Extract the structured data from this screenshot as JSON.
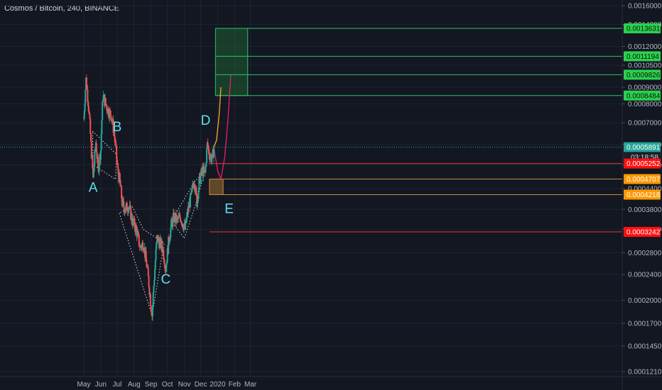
{
  "symbol_title": "Cosmos / Bitcoin, 240, BINANCE",
  "colors": {
    "background": "#131722",
    "grid": "#1f2330",
    "candle_up": "#26a69a",
    "candle_down": "#ef5350",
    "target_box": "#1e5e33",
    "target_line": "#2fc06a",
    "target_badge": "#2ad14e",
    "stop_line": "#e53935",
    "stop_badge": "#ff1010",
    "entry_badge": "#ff9800",
    "entry_box": "#7a5a2a",
    "current_badge": "#26a69a",
    "wave_label": "#5fe0e8",
    "projection_up": "#ffa726",
    "projection_down": "#e91e63"
  },
  "chart_data": {
    "type": "candlestick",
    "title": "Cosmos / Bitcoin, 240, BINANCE",
    "x_ticks": [
      "May",
      "Jun",
      "Jul",
      "Aug",
      "Sep",
      "Oct",
      "Nov",
      "Dec",
      "2020",
      "Feb",
      "Mar"
    ],
    "y_scale": "log",
    "y_ticks": [
      "0.0016000",
      "0.0014000",
      "0.0012000",
      "0.0010500",
      "0.0009000",
      "0.0008000",
      "0.0007000",
      "0.0006000",
      "0.0005200",
      "0.0004400",
      "0.0003800",
      "0.0003300",
      "0.0002800",
      "0.0002400",
      "0.0002000",
      "0.0001700",
      "0.0001450",
      "0.0001210"
    ],
    "ylim": [
      0.000121,
      0.0016
    ],
    "price_path": [
      {
        "t": "2019-05-01",
        "price": 0.00072
      },
      {
        "t": "2019-05-05",
        "price": 0.00095
      },
      {
        "t": "2019-05-10",
        "price": 0.00078
      },
      {
        "t": "2019-05-14",
        "price": 0.0006
      },
      {
        "t": "2019-05-18",
        "price": 0.00047
      },
      {
        "t": "2019-05-23",
        "price": 0.00061
      },
      {
        "t": "2019-05-27",
        "price": 0.0005
      },
      {
        "t": "2019-06-01",
        "price": 0.00058
      },
      {
        "t": "2019-06-05",
        "price": 0.00085
      },
      {
        "t": "2019-06-10",
        "price": 0.0008
      },
      {
        "t": "2019-06-15",
        "price": 0.00076
      },
      {
        "t": "2019-06-20",
        "price": 0.00074
      },
      {
        "t": "2019-06-25",
        "price": 0.00066
      },
      {
        "t": "2019-06-28",
        "price": 0.00059
      },
      {
        "t": "2019-07-02",
        "price": 0.0005
      },
      {
        "t": "2019-07-06",
        "price": 0.00046
      },
      {
        "t": "2019-07-10",
        "price": 0.0004
      },
      {
        "t": "2019-07-15",
        "price": 0.00038
      },
      {
        "t": "2019-07-22",
        "price": 0.00039
      },
      {
        "t": "2019-07-29",
        "price": 0.00035
      },
      {
        "t": "2019-08-05",
        "price": 0.00033
      },
      {
        "t": "2019-08-12",
        "price": 0.00029
      },
      {
        "t": "2019-08-18",
        "price": 0.0003
      },
      {
        "t": "2019-08-25",
        "price": 0.00025
      },
      {
        "t": "2019-08-31",
        "price": 0.0002
      },
      {
        "t": "2019-09-03",
        "price": 0.00018
      },
      {
        "t": "2019-09-08",
        "price": 0.00025
      },
      {
        "t": "2019-09-12",
        "price": 0.00031
      },
      {
        "t": "2019-09-17",
        "price": 0.0003
      },
      {
        "t": "2019-09-22",
        "price": 0.00029
      },
      {
        "t": "2019-09-28",
        "price": 0.00025
      },
      {
        "t": "2019-10-03",
        "price": 0.0003
      },
      {
        "t": "2019-10-08",
        "price": 0.00034
      },
      {
        "t": "2019-10-13",
        "price": 0.00036
      },
      {
        "t": "2019-10-18",
        "price": 0.00035
      },
      {
        "t": "2019-10-25",
        "price": 0.00036
      },
      {
        "t": "2019-11-02",
        "price": 0.00033
      },
      {
        "t": "2019-11-08",
        "price": 0.00038
      },
      {
        "t": "2019-11-14",
        "price": 0.00042
      },
      {
        "t": "2019-11-19",
        "price": 0.00047
      },
      {
        "t": "2019-11-24",
        "price": 0.0004
      },
      {
        "t": "2019-11-29",
        "price": 0.00047
      },
      {
        "t": "2019-12-04",
        "price": 0.0005
      },
      {
        "t": "2019-12-09",
        "price": 0.00049
      },
      {
        "t": "2019-12-13",
        "price": 0.0006
      },
      {
        "t": "2019-12-17",
        "price": 0.00056
      },
      {
        "t": "2019-12-22",
        "price": 0.00054
      },
      {
        "t": "2019-12-25",
        "price": 0.000589
      }
    ],
    "wave_labels": [
      {
        "text": "A",
        "t": "2019-05-18",
        "price": 0.00043
      },
      {
        "text": "B",
        "t": "2019-07-01",
        "price": 0.00066
      },
      {
        "text": "C",
        "t": "2019-09-28",
        "price": 0.000225
      },
      {
        "text": "D",
        "t": "2019-12-10",
        "price": 0.00069
      },
      {
        "text": "E",
        "t": "2020-01-22",
        "price": 0.00037
      }
    ],
    "price_labels": [
      {
        "label": "0.0013631",
        "value": 0.0013631,
        "kind": "target"
      },
      {
        "label": "0.0011194",
        "value": 0.0011194,
        "kind": "target"
      },
      {
        "label": "0.0009826",
        "value": 0.0009826,
        "kind": "target"
      },
      {
        "label": "0.0008484",
        "value": 0.0008484,
        "kind": "target"
      },
      {
        "label": "0.0005891",
        "value": 0.0005891,
        "kind": "current"
      },
      {
        "label": "0.0005252",
        "value": 0.0005252,
        "kind": "stop"
      },
      {
        "label": "0.0004707",
        "value": 0.0004707,
        "kind": "entry"
      },
      {
        "label": "0.0004218",
        "value": 0.0004218,
        "kind": "entry"
      },
      {
        "label": "0.0003242",
        "value": 0.0003242,
        "kind": "stop"
      }
    ],
    "countdown": "03:18:58",
    "target_zone": {
      "t_start": "2019-12-28",
      "t_end": "2020-02-25",
      "low": 0.0008484,
      "high": 0.0013631
    },
    "entry_zone": {
      "t_start": "2019-12-17",
      "t_end": "2020-01-11",
      "low": 0.0004218,
      "high": 0.0004707
    },
    "projection": [
      {
        "t": "2019-12-25",
        "price": 0.000589
      },
      {
        "t": "2020-01-01",
        "price": 0.0005
      },
      {
        "t": "2020-01-07",
        "price": 0.000471
      },
      {
        "t": "2020-01-14",
        "price": 0.00055
      },
      {
        "t": "2020-01-20",
        "price": 0.00072
      },
      {
        "t": "2020-01-25",
        "price": 0.00098
      }
    ],
    "projection_alt": [
      {
        "t": "2019-12-25",
        "price": 0.000589
      },
      {
        "t": "2019-12-30",
        "price": 0.00062
      },
      {
        "t": "2020-01-04",
        "price": 0.00075
      },
      {
        "t": "2020-01-07",
        "price": 0.0009
      }
    ]
  }
}
